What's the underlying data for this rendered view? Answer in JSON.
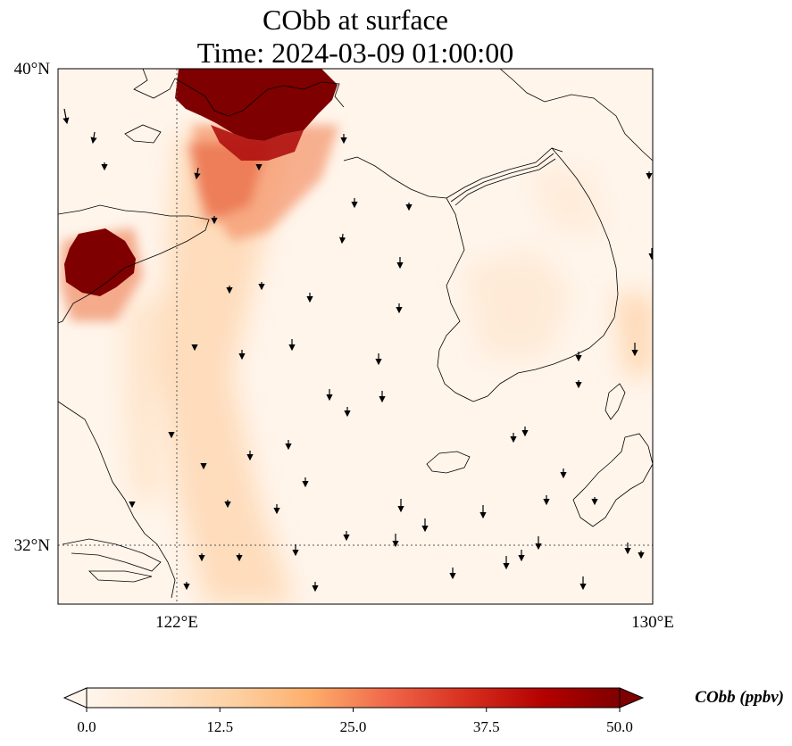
{
  "map": {
    "title": "CObb at surface",
    "subtitle": "Time: 2024-03-09 01:00:00",
    "lat_labels": [
      {
        "value": 40,
        "text": "40°N"
      },
      {
        "value": 32,
        "text": "32°N"
      }
    ],
    "lon_labels": [
      {
        "value": 122,
        "text": "122°E"
      },
      {
        "value": 130,
        "text": "130°E"
      }
    ],
    "gridlines": {
      "lon": [
        122
      ],
      "lat": [
        32
      ],
      "style": "dotted"
    },
    "extent": {
      "lon_min": 120,
      "lon_max": 130,
      "lat_min": 31,
      "lat_max": 40
    },
    "wind_vectors": "small black arrows, mostly pointing south",
    "colors": {
      "coast": "#000000",
      "background": "#fff5eb"
    }
  },
  "colorbar": {
    "label": "CObb (ppbv)",
    "min": 0.0,
    "max": 50.0,
    "ticks": [
      {
        "value": 0,
        "text": "0.0"
      },
      {
        "value": 12.5,
        "text": "12.5"
      },
      {
        "value": 25,
        "text": "25.0"
      },
      {
        "value": 37.5,
        "text": "37.5"
      },
      {
        "value": 50,
        "text": "50.0"
      }
    ],
    "extend": "both",
    "colormap": [
      "#fff5eb",
      "#fdd9b4",
      "#fdb97d",
      "#fd8c3b",
      "#e95e0d",
      "#d94801",
      "#a50f15",
      "#7f0000"
    ]
  }
}
